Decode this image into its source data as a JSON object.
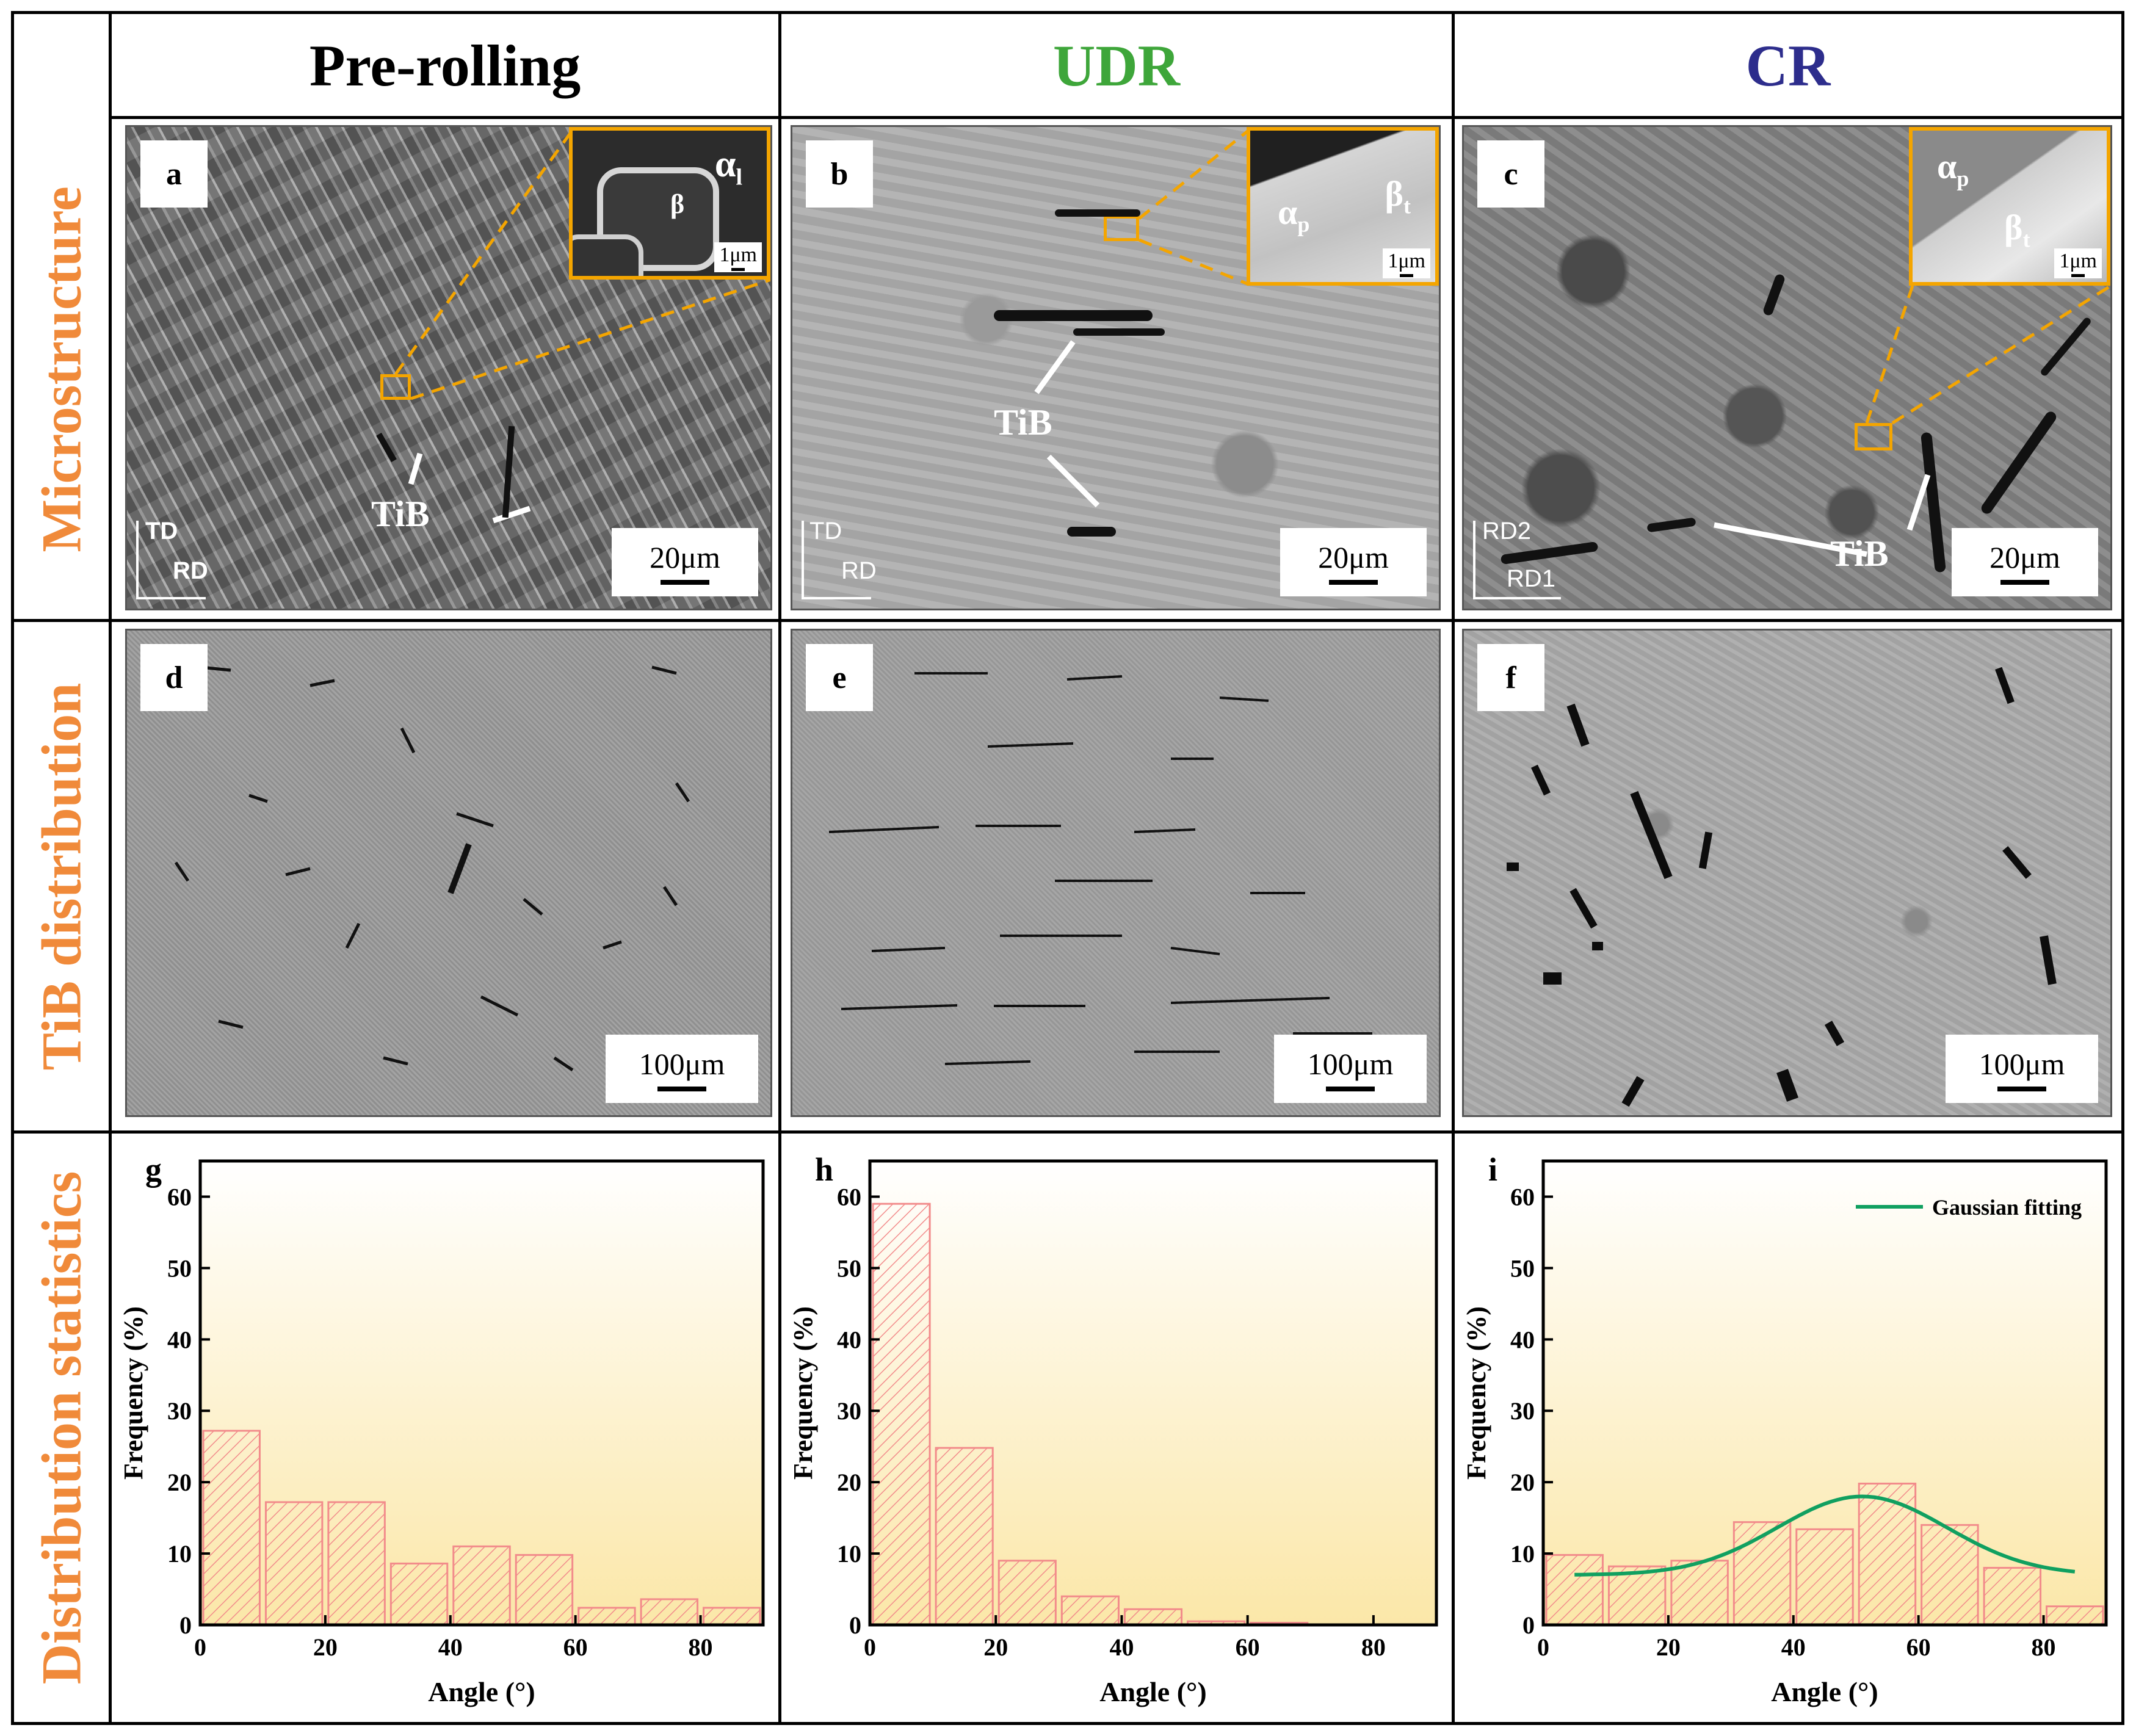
{
  "columns": [
    {
      "title": "Pre-rolling",
      "color": "#000000"
    },
    {
      "title": "UDR",
      "color": "#3ea63a"
    },
    {
      "title": "CR",
      "color": "#2d2d8c"
    }
  ],
  "rows": [
    {
      "label": "Microstructure"
    },
    {
      "label": "TiB distribution"
    },
    {
      "label": "Distribution statistics"
    }
  ],
  "micro_panels": [
    {
      "letter": "a",
      "scale": "20μm",
      "axis_v": "TD",
      "axis_h": "RD",
      "tib_label": "TiB",
      "inset_phase_1": "α",
      "inset_phase_1_sub": "l",
      "inset_phase_2": "β",
      "inset_scale": "1μm"
    },
    {
      "letter": "b",
      "scale": "20μm",
      "axis_v": "TD",
      "axis_h": "RD",
      "tib_label": "TiB",
      "inset_phase_1": "α",
      "inset_phase_1_sub": "p",
      "inset_phase_2": "β",
      "inset_phase_2_sub": "t",
      "inset_scale": "1μm"
    },
    {
      "letter": "c",
      "scale": "20μm",
      "axis_v": "RD2",
      "axis_h": "RD1",
      "tib_label": "TiB",
      "inset_phase_1": "α",
      "inset_phase_1_sub": "p",
      "inset_phase_2": "β",
      "inset_phase_2_sub": "t",
      "inset_scale": "1μm"
    }
  ],
  "dist_panels": [
    {
      "letter": "d",
      "scale": "100μm"
    },
    {
      "letter": "e",
      "scale": "100μm"
    },
    {
      "letter": "f",
      "scale": "100μm"
    }
  ],
  "colors": {
    "accent_orange": "#f08a3a",
    "inset_border": "#f4a500",
    "bar_edge": "#f28b8b",
    "fit_line": "#10a060",
    "bg_top": "#ffffff",
    "bg_bottom": "#fbe7a8"
  },
  "chart_data": [
    {
      "type": "bar",
      "panel": "g",
      "xlabel": "Angle (°)",
      "ylabel": "Frequency (%)",
      "xlim": [
        0,
        90
      ],
      "ylim": [
        0,
        65
      ],
      "xticks": [
        0,
        20,
        40,
        60,
        80
      ],
      "yticks": [
        0,
        10,
        20,
        30,
        40,
        50,
        60
      ],
      "x": [
        5,
        15,
        25,
        35,
        45,
        55,
        65,
        75,
        85
      ],
      "values": [
        27.2,
        17.2,
        17.2,
        8.6,
        11.0,
        9.8,
        2.4,
        3.6,
        2.4
      ]
    },
    {
      "type": "bar",
      "panel": "h",
      "xlabel": "Angle (°)",
      "ylabel": "Frequency (%)",
      "xlim": [
        0,
        90
      ],
      "ylim": [
        0,
        65
      ],
      "xticks": [
        0,
        20,
        40,
        60,
        80
      ],
      "yticks": [
        0,
        10,
        20,
        30,
        40,
        50,
        60
      ],
      "x": [
        5,
        15,
        25,
        35,
        45,
        55,
        65,
        75,
        85
      ],
      "values": [
        59.0,
        24.8,
        9.0,
        4.0,
        2.2,
        0.5,
        0.3,
        0,
        0
      ]
    },
    {
      "type": "bar",
      "panel": "i",
      "xlabel": "Angle (°)",
      "ylabel": "Frequency (%)",
      "xlim": [
        0,
        90
      ],
      "ylim": [
        0,
        65
      ],
      "xticks": [
        0,
        20,
        40,
        60,
        80
      ],
      "yticks": [
        0,
        10,
        20,
        30,
        40,
        50,
        60
      ],
      "x": [
        5,
        15,
        25,
        35,
        45,
        55,
        65,
        75,
        85
      ],
      "values": [
        9.8,
        8.2,
        9.0,
        14.4,
        13.4,
        19.8,
        14.0,
        8.0,
        2.6
      ],
      "fit": {
        "name": "Gaussian fitting",
        "mu": 51,
        "sigma": 13.5,
        "baseline": 7,
        "amplitude": 11,
        "x_range": [
          5,
          85
        ]
      }
    }
  ]
}
